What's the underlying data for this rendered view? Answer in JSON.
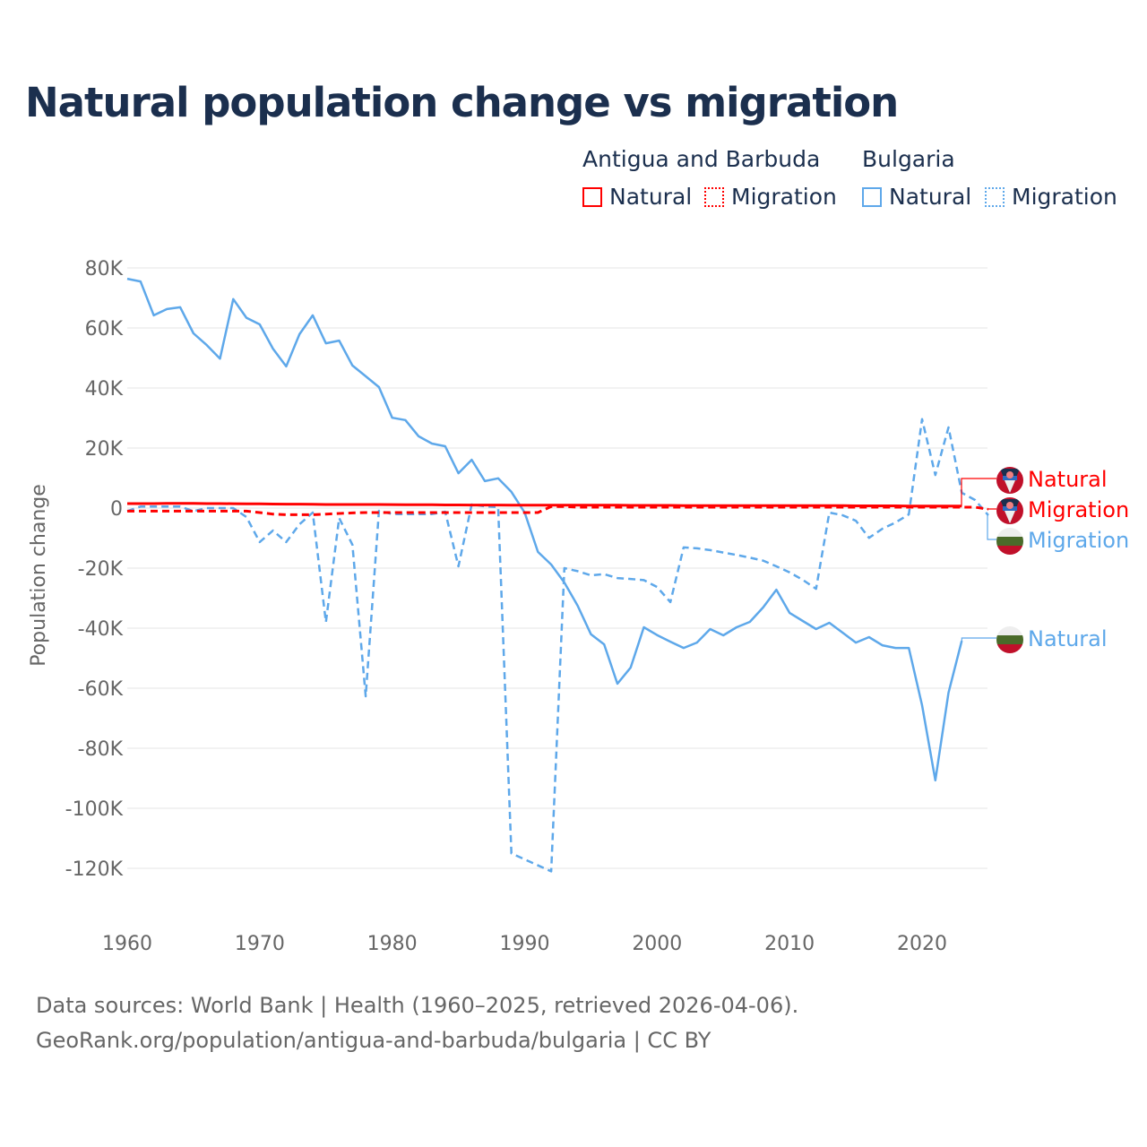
{
  "title": "Natural population change vs migration",
  "legend": {
    "groups": [
      {
        "name": "Antigua and Barbuda",
        "items": [
          {
            "label": "Natural",
            "style": "solid"
          },
          {
            "label": "Migration",
            "style": "dotted"
          }
        ],
        "color": "#ff0000"
      },
      {
        "name": "Bulgaria",
        "items": [
          {
            "label": "Natural",
            "style": "solid"
          },
          {
            "label": "Migration",
            "style": "dotted"
          }
        ],
        "color": "#5ea8ea"
      }
    ]
  },
  "footer": {
    "line1": "Data sources: World Bank | Health (1960–2025, retrieved 2026-04-06).",
    "line2": "GeoRank.org/population/antigua-and-barbuda/bulgaria | CC BY"
  },
  "chart_data": {
    "type": "line",
    "title": "Natural population change vs migration",
    "xlabel": "",
    "ylabel": "Population change",
    "xlim": [
      1960,
      2025
    ],
    "ylim": [
      -130000,
      80000
    ],
    "xticks": [
      1960,
      1970,
      1980,
      1990,
      2000,
      2010,
      2020
    ],
    "yticks": [
      80000,
      60000,
      40000,
      20000,
      0,
      -20000,
      -40000,
      -60000,
      -80000,
      -100000,
      -120000
    ],
    "ytick_labels": [
      "80K",
      "60K",
      "40K",
      "20K",
      "0",
      "-20K",
      "-40K",
      "-60K",
      "-80K",
      "-100K",
      "-120K"
    ],
    "grid": true,
    "series": [
      {
        "name": "Antigua and Barbuda Natural",
        "end_label": "Natural",
        "color": "#ff0000",
        "dash": false,
        "flag": "antigua",
        "start": 1960,
        "values": [
          1500,
          1500,
          1500,
          1550,
          1550,
          1550,
          1500,
          1500,
          1450,
          1400,
          1400,
          1350,
          1300,
          1300,
          1250,
          1200,
          1200,
          1200,
          1200,
          1200,
          1150,
          1100,
          1100,
          1100,
          1050,
          1050,
          1000,
          1000,
          1000,
          950,
          950,
          950,
          950,
          950,
          950,
          950,
          950,
          950,
          900,
          900,
          900,
          900,
          850,
          850,
          850,
          850,
          850,
          850,
          850,
          850,
          850,
          800,
          800,
          800,
          800,
          750,
          750,
          750,
          750,
          700,
          700,
          700,
          700,
          700
        ]
      },
      {
        "name": "Antigua and Barbuda Migration",
        "end_label": "Migration",
        "color": "#ff0000",
        "dash": true,
        "flag": "antigua",
        "start": 1960,
        "values": [
          -1000,
          -1000,
          -1000,
          -1000,
          -1000,
          -1000,
          -1000,
          -1000,
          -1000,
          -1000,
          -1500,
          -2000,
          -2200,
          -2200,
          -2200,
          -2000,
          -1800,
          -1600,
          -1500,
          -1500,
          -1500,
          -1500,
          -1500,
          -1500,
          -1500,
          -1500,
          -1500,
          -1500,
          -1500,
          -1500,
          -1500,
          -1500,
          500,
          500,
          300,
          300,
          300,
          300,
          300,
          300,
          300,
          300,
          300,
          300,
          300,
          300,
          300,
          300,
          300,
          300,
          300,
          300,
          300,
          300,
          300,
          300,
          300,
          300,
          300,
          300,
          300,
          300,
          300,
          300,
          300,
          -400
        ]
      },
      {
        "name": "Bulgaria Natural",
        "end_label": "Natural",
        "color": "#5ea8ea",
        "dash": false,
        "flag": "bulgaria",
        "start": 1960,
        "values": [
          76400,
          75500,
          64200,
          66300,
          66900,
          58200,
          54300,
          49800,
          69600,
          63400,
          61200,
          53100,
          47200,
          57900,
          64200,
          54900,
          55800,
          47500,
          43900,
          40300,
          30100,
          29300,
          23900,
          21500,
          20600,
          11600,
          16100,
          9000,
          9900,
          5400,
          -1500,
          -14600,
          -18800,
          -24800,
          -32500,
          -42000,
          -45400,
          -58500,
          -53100,
          -39700,
          -42300,
          -44500,
          -46600,
          -44800,
          -40300,
          -42400,
          -39700,
          -37900,
          -33100,
          -27200,
          -34900,
          -37600,
          -40300,
          -38200,
          -41500,
          -44800,
          -43000,
          -45700,
          -46600,
          -46600,
          -65700,
          -90700,
          -61500,
          -44200
        ]
      },
      {
        "name": "Bulgaria Migration",
        "end_label": "Migration",
        "color": "#5ea8ea",
        "dash": true,
        "flag": "bulgaria",
        "start": 1960,
        "values": [
          -1000,
          500,
          500,
          500,
          500,
          -1000,
          0,
          0,
          0,
          -3000,
          -11300,
          -7500,
          -11300,
          -5400,
          -1500,
          -38000,
          -3300,
          -12200,
          -62700,
          -900,
          -2000,
          -2000,
          -2000,
          -2000,
          -1200,
          -19400,
          1200,
          600,
          300,
          -115000,
          -117000,
          -119000,
          -121000,
          -20000,
          -21000,
          -22400,
          -22000,
          -23300,
          -23600,
          -24000,
          -26300,
          -31300,
          -13100,
          -13400,
          -14000,
          -14800,
          -15600,
          -16500,
          -17500,
          -19400,
          -21400,
          -23900,
          -26900,
          -1500,
          -2400,
          -4200,
          -9900,
          -6900,
          -4800,
          -2100,
          29600,
          11000,
          26900,
          5100,
          2700,
          -2400
        ]
      }
    ]
  }
}
